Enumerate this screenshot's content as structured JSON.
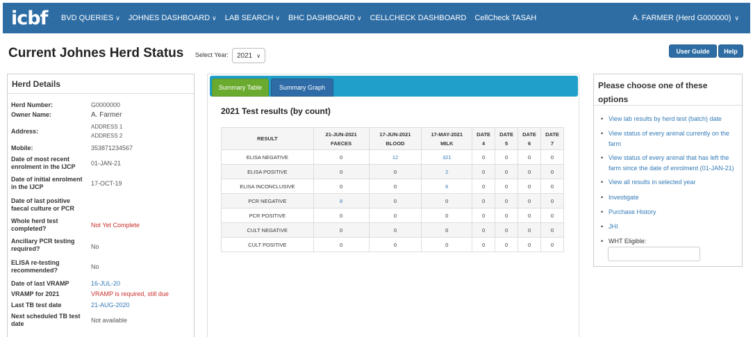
{
  "navbar": {
    "logo": "icbf",
    "items": [
      {
        "label": "BVD QUERIES",
        "dropdown": true
      },
      {
        "label": "JOHNES DASHBOARD",
        "dropdown": true
      },
      {
        "label": "LAB SEARCH",
        "dropdown": true
      },
      {
        "label": "BHC DASHBOARD",
        "dropdown": true
      },
      {
        "label": "CELLCHECK DASHBOARD",
        "dropdown": false
      },
      {
        "label": "CellCheck TASAH",
        "dropdown": false
      }
    ],
    "user": "A. FARMER (Herd G000000)"
  },
  "page": {
    "title": "Current Johnes Herd Status",
    "select_year_label": "Select Year:",
    "selected_year": "2021",
    "user_guide_label": "User Guide",
    "help_label": "Help"
  },
  "herd_details": {
    "title": "Herd Details",
    "rows": [
      {
        "label": "Herd Number:",
        "value": "G0000000"
      },
      {
        "label": "Owner Name:",
        "value": "A. Farmer"
      },
      {
        "label": "Address:",
        "value": "ADDRESS 1",
        "value2": "ADDRESS 2"
      },
      {
        "label": "Mobile:",
        "value": "353871234567"
      },
      {
        "label": "Date of most recent",
        "label2": "enrolment in the IJCP",
        "value": "01-JAN-21"
      },
      {
        "label": "Date of initial enrolment",
        "label2": "in the IJCP",
        "value": "17-OCT-19"
      },
      {
        "label": "Date of last positive",
        "label2": "faecal culture or PCR",
        "value": ""
      },
      {
        "label": "Whole herd test",
        "label2": "completed?",
        "value": "Not Yet Complete"
      },
      {
        "label": "Ancillary PCR testing",
        "label2": "required?",
        "value": "No"
      },
      {
        "label": "ELISA re-testing",
        "label2": "recommended?",
        "value": "No"
      },
      {
        "label": "Date of last VRAMP",
        "value": "16-JUL-20"
      },
      {
        "label": "VRAMP for 2021",
        "value": "VRAMP is required, still due"
      },
      {
        "label": "Last TB test date",
        "value": "21-AUG-2020"
      },
      {
        "label": "Next scheduled TB test",
        "label2": "date",
        "value": "Not available"
      }
    ]
  },
  "center": {
    "tabs": [
      "Summary Table",
      "Summary Graph"
    ],
    "heading": "2021 Test results (by count)",
    "columns": [
      {
        "line1": "RESULT",
        "line2": ""
      },
      {
        "line1": "21-JUN-2021",
        "line2": "FAECES"
      },
      {
        "line1": "17-JUN-2021",
        "line2": "BLOOD"
      },
      {
        "line1": "17-MAY-2021",
        "line2": "MILK"
      },
      {
        "line1": "DATE",
        "line2": "4"
      },
      {
        "line1": "DATE",
        "line2": "5"
      },
      {
        "line1": "DATE",
        "line2": "6"
      },
      {
        "line1": "DATE",
        "line2": "7"
      }
    ],
    "rows": [
      {
        "label": "ELISA NEGATIVE",
        "values": [
          "0",
          "12",
          "321",
          "0",
          "0",
          "0",
          "0"
        ],
        "links": [
          false,
          true,
          true,
          false,
          false,
          false,
          false
        ]
      },
      {
        "label": "ELISA POSITIVE",
        "values": [
          "0",
          "0",
          "2",
          "0",
          "0",
          "0",
          "0"
        ],
        "links": [
          false,
          false,
          true,
          false,
          false,
          false,
          false
        ]
      },
      {
        "label": "ELISA INCONCLUSIVE",
        "values": [
          "0",
          "0",
          "6",
          "0",
          "0",
          "0",
          "0"
        ],
        "links": [
          false,
          false,
          true,
          false,
          false,
          false,
          false
        ]
      },
      {
        "label": "PCR NEGATIVE",
        "values": [
          "8",
          "0",
          "0",
          "0",
          "0",
          "0",
          "0"
        ],
        "links": [
          true,
          false,
          false,
          false,
          false,
          false,
          false
        ]
      },
      {
        "label": "PCR POSITIVE",
        "values": [
          "0",
          "0",
          "0",
          "0",
          "0",
          "0",
          "0"
        ],
        "links": [
          false,
          false,
          false,
          false,
          false,
          false,
          false
        ]
      },
      {
        "label": "CULT NEGATIVE",
        "values": [
          "0",
          "0",
          "0",
          "0",
          "0",
          "0",
          "0"
        ],
        "links": [
          false,
          false,
          false,
          false,
          false,
          false,
          false
        ]
      },
      {
        "label": "CULT POSITIVE",
        "values": [
          "0",
          "0",
          "0",
          "0",
          "0",
          "0",
          "0"
        ],
        "links": [
          false,
          false,
          false,
          false,
          false,
          false,
          false
        ]
      }
    ]
  },
  "options": {
    "title_line1": "Please choose one of these",
    "title_line2": "options",
    "items": [
      {
        "text": "View lab results by herd test (batch) date"
      },
      {
        "text": "View status of every animal currently on the",
        "text2": "farm"
      },
      {
        "text": "View status of every animal that has left the",
        "text2": "farm since the date of enrolment (01-JAN-21)"
      },
      {
        "text": "View all results in selected year"
      },
      {
        "text": "Investigate"
      },
      {
        "text": "Purchase History"
      },
      {
        "text": "JHI"
      }
    ],
    "wht_label": "WHT Eligible:",
    "wht_value": ""
  },
  "colors": {
    "navbar": "#2e6da4",
    "tab_bar": "#1f9fc9",
    "tab_active": "#6aab2f",
    "tab_inactive": "#2f6ca7",
    "link": "#337ab7",
    "alert_red": "#c9302c"
  }
}
